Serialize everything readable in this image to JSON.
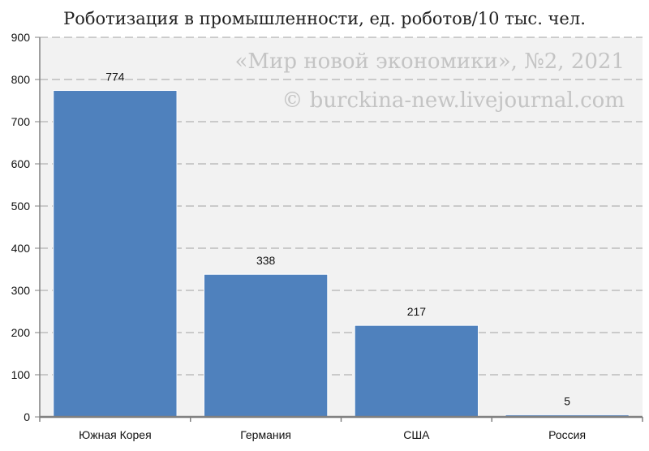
{
  "chart_data": {
    "type": "bar",
    "title": "Роботизация в промышленности, ед. роботов/10 тыс. чел.",
    "categories": [
      "Южная Корея",
      "Германия",
      "США",
      "Россия"
    ],
    "values": [
      774,
      338,
      217,
      5
    ],
    "data_labels": [
      "774",
      "338",
      "217",
      "5"
    ],
    "xlabel": "",
    "ylabel": "",
    "ylim": [
      0,
      900
    ],
    "yticks": [
      0,
      100,
      200,
      300,
      400,
      500,
      600,
      700,
      800,
      900
    ],
    "grid": true,
    "legend": "none",
    "annotations": [
      "«Мир новой экономики», №2, 2021",
      "© burckina-new.livejournal.com"
    ],
    "colors": {
      "bar": "#4f81bd",
      "bar_edge": "#ffffff",
      "plot_bg": "#f2f2f2",
      "grid": "#b3b3b3",
      "axis": "#808080",
      "watermark": "#c4c4c4"
    }
  }
}
